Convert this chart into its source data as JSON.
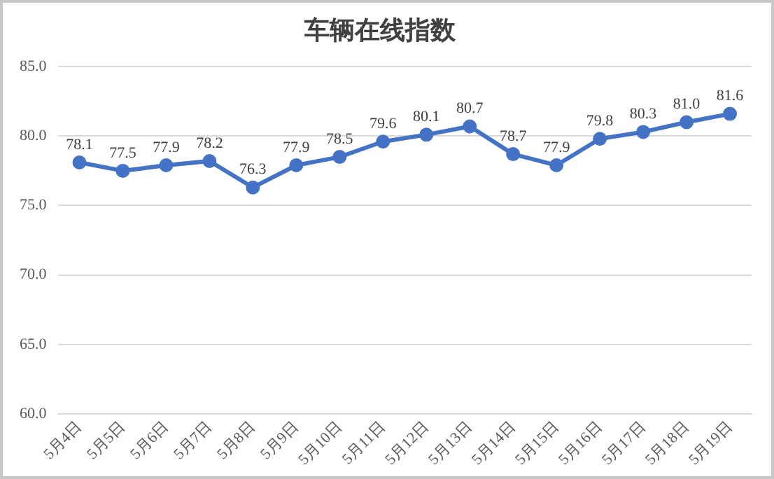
{
  "chart_data": {
    "type": "line",
    "title": "车辆在线指数",
    "categories": [
      "5月4日",
      "5月5日",
      "5月6日",
      "5月7日",
      "5月8日",
      "5月9日",
      "5月10日",
      "5月11日",
      "5月12日",
      "5月13日",
      "5月14日",
      "5月15日",
      "5月16日",
      "5月17日",
      "5月18日",
      "5月19日"
    ],
    "series": [
      {
        "color": "#4472c4",
        "values": [
          78.1,
          77.5,
          77.9,
          78.2,
          76.3,
          77.9,
          78.5,
          79.6,
          80.1,
          80.7,
          78.7,
          77.9,
          79.8,
          80.3,
          81.0,
          81.6
        ],
        "value_labels": [
          "78.1",
          "77.5",
          "77.9",
          "78.2",
          "76.3",
          "77.9",
          "78.5",
          "79.6",
          "80.1",
          "80.7",
          "78.7",
          "77.9",
          "79.8",
          "80.3",
          "81.0",
          "81.6"
        ]
      }
    ],
    "ylim": [
      60,
      85
    ],
    "yticks": [
      {
        "value": 60,
        "label": "60.0"
      },
      {
        "value": 65,
        "label": "65.0"
      },
      {
        "value": 70,
        "label": "70.0"
      },
      {
        "value": 75,
        "label": "75.0"
      },
      {
        "value": 80,
        "label": "80.0"
      },
      {
        "value": 85,
        "label": "85.0"
      }
    ],
    "grid": "y",
    "legend": false,
    "marker": "circle",
    "line_style": "solid"
  }
}
